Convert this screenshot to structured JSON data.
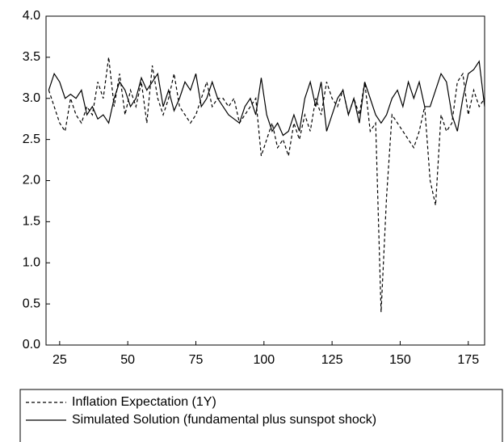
{
  "chart_data": {
    "type": "line",
    "x": [
      21,
      23,
      25,
      27,
      29,
      31,
      33,
      35,
      37,
      39,
      41,
      43,
      45,
      47,
      49,
      51,
      53,
      55,
      57,
      59,
      61,
      63,
      65,
      67,
      69,
      71,
      73,
      75,
      77,
      79,
      81,
      83,
      85,
      87,
      89,
      91,
      93,
      95,
      97,
      99,
      101,
      103,
      105,
      107,
      109,
      111,
      113,
      115,
      117,
      119,
      121,
      123,
      125,
      127,
      129,
      131,
      133,
      135,
      137,
      139,
      141,
      143,
      145,
      147,
      149,
      151,
      153,
      155,
      157,
      159,
      161,
      163,
      165,
      167,
      169,
      171,
      173,
      175,
      177,
      179,
      181
    ],
    "series": [
      {
        "name": "Inflation Expectation (1Y)",
        "color": "#000000",
        "dash": "4,3",
        "values": [
          3.1,
          2.9,
          2.7,
          2.6,
          3.0,
          2.8,
          2.7,
          2.9,
          2.8,
          3.2,
          3.0,
          3.5,
          2.9,
          3.3,
          2.8,
          3.1,
          2.9,
          3.2,
          2.7,
          3.4,
          3.0,
          2.8,
          3.0,
          3.3,
          2.9,
          2.8,
          2.7,
          2.8,
          3.0,
          3.2,
          2.9,
          3.0,
          3.0,
          2.9,
          3.0,
          2.7,
          2.8,
          2.9,
          3.0,
          2.3,
          2.5,
          2.7,
          2.4,
          2.5,
          2.3,
          2.7,
          2.5,
          2.8,
          2.6,
          3.0,
          2.8,
          3.2,
          3.0,
          2.9,
          3.1,
          2.8,
          3.0,
          2.8,
          3.2,
          2.6,
          2.7,
          0.4,
          1.8,
          2.8,
          2.7,
          2.6,
          2.5,
          2.4,
          2.6,
          2.9,
          2.0,
          1.7,
          2.8,
          2.6,
          2.7,
          3.2,
          3.3,
          2.8,
          3.1,
          2.9,
          3.0
        ]
      },
      {
        "name": "Simulated Solution (fundamental plus sunspot shock)",
        "color": "#000000",
        "values": [
          3.1,
          3.3,
          3.2,
          3.0,
          3.05,
          3.0,
          3.1,
          2.8,
          2.9,
          2.75,
          2.8,
          2.7,
          3.0,
          3.2,
          3.1,
          2.9,
          3.0,
          3.25,
          3.1,
          3.2,
          3.3,
          2.9,
          3.1,
          2.85,
          3.0,
          3.2,
          3.1,
          3.3,
          2.9,
          3.0,
          3.2,
          3.0,
          2.9,
          2.8,
          2.75,
          2.7,
          2.9,
          3.0,
          2.8,
          3.25,
          2.8,
          2.6,
          2.7,
          2.55,
          2.6,
          2.8,
          2.6,
          3.0,
          3.2,
          2.9,
          3.2,
          2.6,
          2.8,
          3.0,
          3.1,
          2.8,
          3.0,
          2.7,
          3.2,
          3.0,
          2.8,
          2.7,
          2.8,
          3.0,
          3.1,
          2.9,
          3.2,
          3.0,
          3.2,
          2.9,
          2.9,
          3.1,
          3.3,
          3.2,
          2.8,
          2.6,
          3.0,
          3.3,
          3.35,
          3.45,
          2.9
        ]
      }
    ],
    "xlim": [
      20,
      181
    ],
    "xticks": [
      25,
      50,
      75,
      100,
      125,
      150,
      175
    ],
    "ylim": [
      0,
      4
    ],
    "yticks": [
      {
        "value": 0,
        "label": "0.0"
      },
      {
        "value": 0.5,
        "label": "0.5"
      },
      {
        "value": 1,
        "label": "1.0"
      },
      {
        "value": 1.5,
        "label": "1.5"
      },
      {
        "value": 2,
        "label": "2.0"
      },
      {
        "value": 2.5,
        "label": "2.5"
      },
      {
        "value": 3,
        "label": "3.0"
      },
      {
        "value": 3.5,
        "label": "3.5"
      },
      {
        "value": 4,
        "label": "4.0"
      }
    ],
    "grid": false,
    "legend": "bottom"
  }
}
